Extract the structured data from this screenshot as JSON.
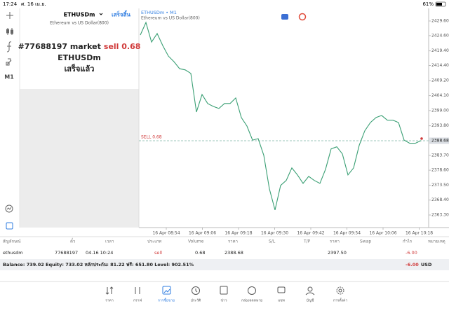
{
  "status_bar": {
    "time": "17:24",
    "date": "ศ. 16 เม.ย.",
    "battery": "61%"
  },
  "toolbar": {
    "timeframe": "M1"
  },
  "order_panel": {
    "symbol": "ETHUSDm",
    "done_button": "เสร็จสิ้น",
    "description": "Ethereum vs US Dollar(800)",
    "order_text": "#77688197 market",
    "order_side": "sell 0.68",
    "result_symbol": "ETHUSDm",
    "status": "เสร็จแล้ว"
  },
  "chart": {
    "type": "line",
    "title": "ETHUSDm • M1",
    "subtitle": "Ethereum vs US Dollar(800)",
    "color": "#3a9f74",
    "values": [
      2424.8,
      2429.1,
      2422.4,
      2425.3,
      2421.2,
      2417.6,
      2415.7,
      2413.3,
      2412.9,
      2411.7,
      2398.5,
      2404.5,
      2401.4,
      2400.4,
      2399.7,
      2401.4,
      2401.4,
      2403.3,
      2396.6,
      2393.7,
      2388.9,
      2389.4,
      2383.7,
      2372.2,
      2365.0,
      2373.4,
      2375.1,
      2379.4,
      2377.0,
      2374.1,
      2376.5,
      2375.1,
      2374.1,
      2378.9,
      2385.9,
      2386.6,
      2384.2,
      2377.0,
      2379.4,
      2387.1,
      2392.1,
      2394.9,
      2396.6,
      2397.3,
      2395.7,
      2395.7,
      2394.9,
      2388.9,
      2387.8,
      2387.8,
      2388.7
    ],
    "ylim": [
      2359.0,
      2433.9
    ],
    "yticks": [
      {
        "value": 2429.6,
        "label": "2429.60"
      },
      {
        "value": 2424.6,
        "label": "2424.60"
      },
      {
        "value": 2419.4,
        "label": "2419.40"
      },
      {
        "value": 2414.4,
        "label": "2414.40"
      },
      {
        "value": 2409.2,
        "label": "2409.20"
      },
      {
        "value": 2404.1,
        "label": "2404.10"
      },
      {
        "value": 2399.0,
        "label": "2399.00"
      },
      {
        "value": 2393.8,
        "label": "2393.80"
      },
      {
        "value": 2383.7,
        "label": "2383.70"
      },
      {
        "value": 2378.6,
        "label": "2378.60"
      },
      {
        "value": 2373.5,
        "label": "2373.50"
      },
      {
        "value": 2368.4,
        "label": "2368.40"
      },
      {
        "value": 2363.3,
        "label": "2363.30"
      }
    ],
    "current_price": {
      "value": 2388.68,
      "label": "2388.68"
    },
    "sell_line": {
      "value": 2388.68,
      "label": "SELL 0.68"
    },
    "xticks": [
      "16 Apr 08:54",
      "16 Apr 09:06",
      "16 Apr 09:18",
      "16 Apr 09:30",
      "16 Apr 09:42",
      "16 Apr 09:54",
      "16 Apr 10:06",
      "16 Apr 10:18"
    ]
  },
  "trades": {
    "columns": [
      "สัญลักษณ์",
      "ตั๋ว",
      "เวลา",
      "ประเภท",
      "Volume",
      "ราคา",
      "S/L",
      "T/P",
      "ราคา",
      "Swap",
      "กำไร",
      "หมายเหตุ"
    ],
    "row": {
      "symbol": "ethusdm",
      "ticket": "77688197",
      "time": "04.16 10:24",
      "type": "sell",
      "volume": "0.68",
      "price": "2388.68",
      "current_price": "2397.50",
      "profit": "-6.00"
    }
  },
  "balance": {
    "summary": "Balance: 739.02 Equity: 733.02 หลักประกัน: 81.22 ฟรี: 651.80 Level: 902.51%",
    "profit": "-6.00",
    "currency": "USD"
  },
  "nav": {
    "items": [
      "ราคา",
      "กราฟ",
      "การซื้อขาย",
      "ประวัติ",
      "ข่าว",
      "กล่องจดหมาย",
      "แชท",
      "บัญชี",
      "การตั้งค่า"
    ],
    "active": 2
  }
}
